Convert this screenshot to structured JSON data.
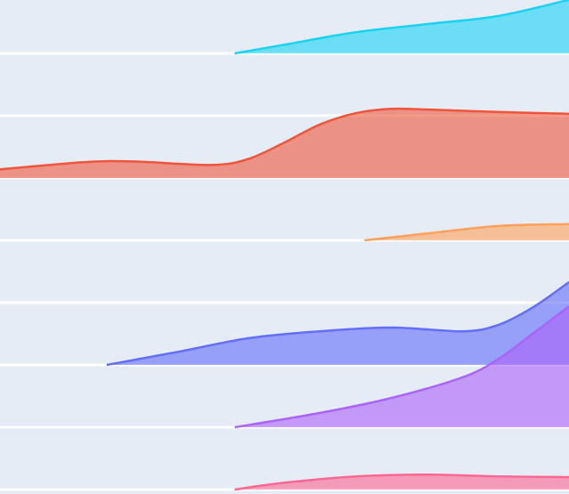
{
  "chart_data": {
    "type": "ridgeline",
    "xlim": [
      0,
      8
    ],
    "series": [
      {
        "color": "#19d3f3",
        "x": [
          3.3,
          4,
          5,
          6,
          7,
          8
        ],
        "values": [
          0,
          0.14,
          0.34,
          0.47,
          0.6,
          0.86
        ]
      },
      {
        "color": "#ef553b",
        "x": [
          0,
          1,
          1.5,
          2,
          3,
          3.5,
          4,
          4.5,
          5,
          5.5,
          6,
          7,
          8
        ],
        "values": [
          0.14,
          0.24,
          0.27,
          0.26,
          0.21,
          0.31,
          0.57,
          0.86,
          1.04,
          1.11,
          1.1,
          1.06,
          1.03
        ]
      },
      {
        "color": "#ffa15a",
        "x": [
          5.125,
          6,
          7,
          8
        ],
        "values": [
          0,
          0.11,
          0.23,
          0.26
        ]
      },
      {
        "color": "#636efa",
        "x": [
          1.5,
          2.5,
          3.5,
          4.5,
          5.5,
          6.5,
          7,
          7.5,
          8
        ],
        "values": [
          0,
          0.21,
          0.43,
          0.54,
          0.6,
          0.54,
          0.64,
          0.93,
          1.33
        ]
      },
      {
        "color": "#ab63fa",
        "x": [
          3.3,
          4.5,
          5.5,
          6.5,
          7,
          7.5,
          8
        ],
        "values": [
          0,
          0.23,
          0.47,
          0.8,
          1.09,
          1.51,
          1.94
        ]
      },
      {
        "color": "#ff6692",
        "x": [
          3.3,
          4,
          5,
          6,
          7,
          8
        ],
        "values": [
          0,
          0.11,
          0.21,
          0.24,
          0.21,
          0.2
        ]
      }
    ]
  }
}
